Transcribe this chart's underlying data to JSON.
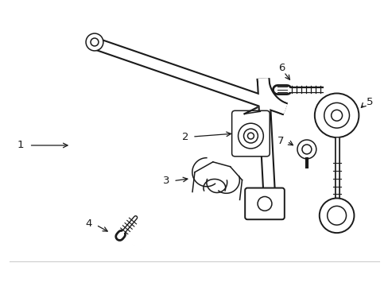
{
  "background_color": "#ffffff",
  "line_color": "#1a1a1a",
  "line_width": 1.1,
  "label_fontsize": 9.5,
  "bar_lw_outer": 11,
  "bar_lw_inner": 8
}
